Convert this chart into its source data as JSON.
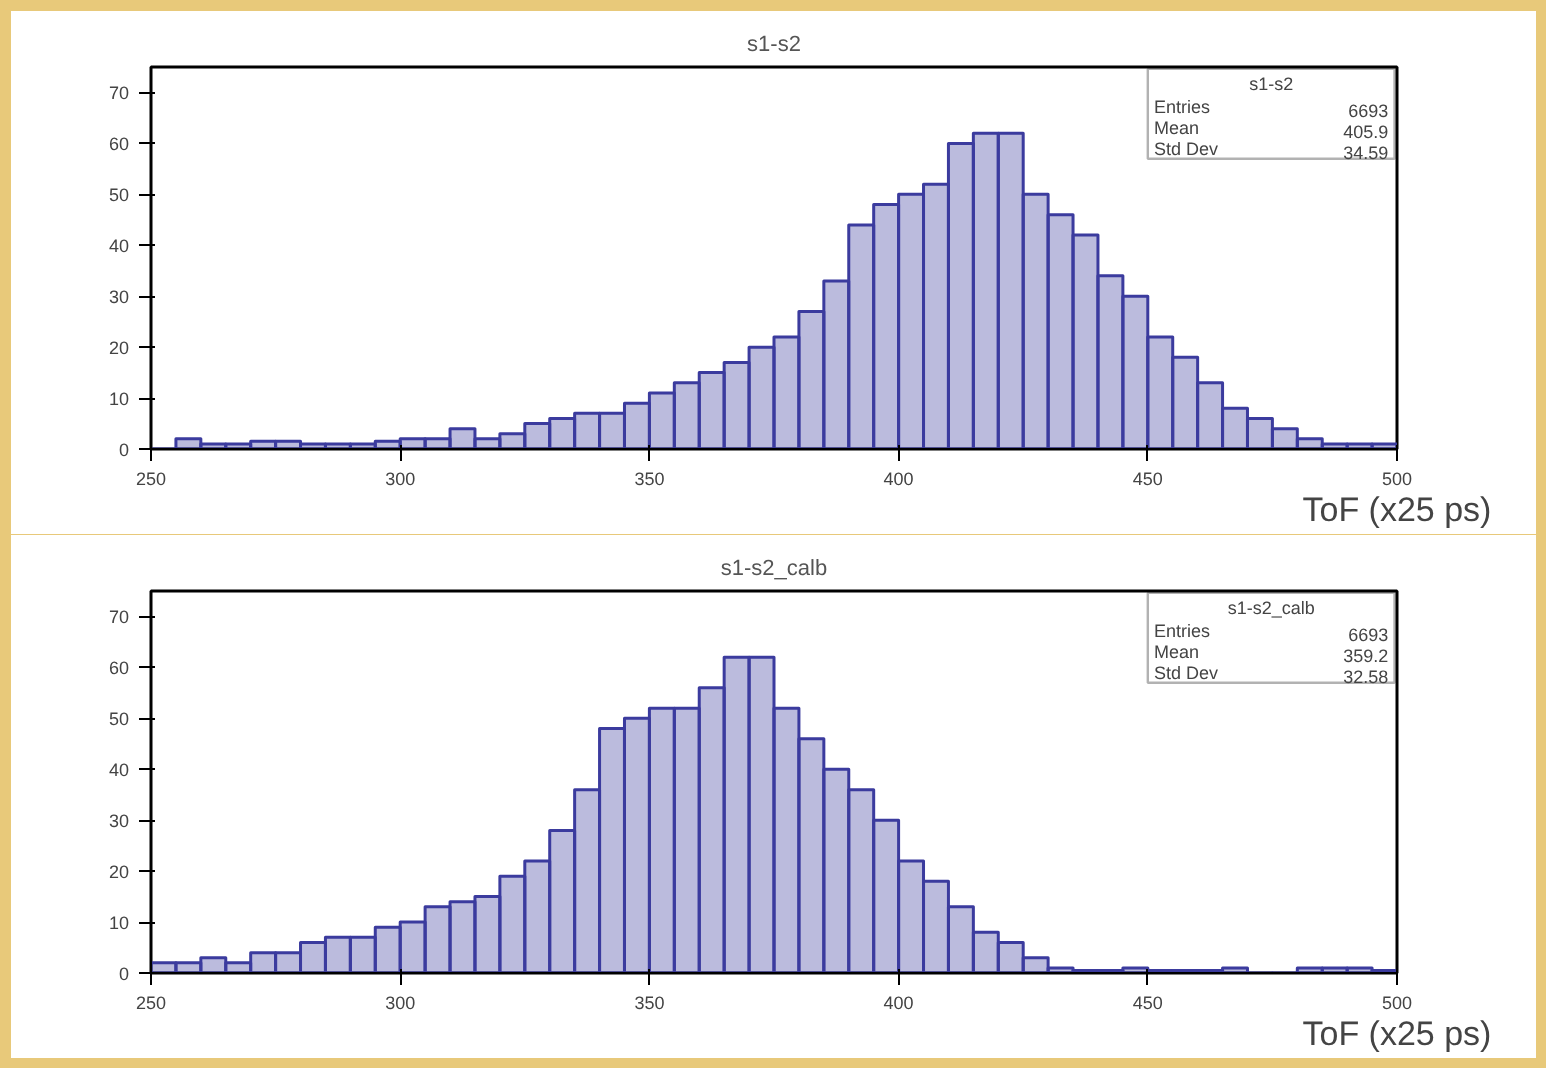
{
  "chart_data": [
    {
      "type": "histogram",
      "title": "s1-s2",
      "xlabel": "ToF (x25 ps)",
      "color": "#3b3b9e",
      "bins": [
        250,
        255,
        260,
        265,
        270,
        275,
        280,
        285,
        290,
        295,
        300,
        305,
        310,
        315,
        320,
        325,
        330,
        335,
        340,
        345,
        350,
        355,
        360,
        365,
        370,
        375,
        380,
        385,
        390,
        395,
        400,
        405,
        410,
        415,
        420,
        425,
        430,
        435,
        440,
        445,
        450,
        455,
        460,
        465,
        470,
        475,
        480,
        485,
        490,
        495,
        500
      ],
      "values": [
        0,
        2,
        1,
        1,
        1.5,
        1.5,
        1,
        1,
        1,
        1.5,
        2,
        2,
        4,
        2,
        3,
        5,
        6,
        7,
        7,
        9,
        11,
        13,
        15,
        17,
        20,
        22,
        27,
        33,
        44,
        48,
        50,
        52,
        60,
        62,
        62,
        50,
        46,
        42,
        34,
        30,
        22,
        18,
        13,
        8,
        6,
        4,
        2,
        1,
        1,
        1
      ],
      "xlim": [
        250,
        500
      ],
      "ylim": [
        0,
        75
      ],
      "xticks": [
        250,
        300,
        350,
        400,
        450,
        500
      ],
      "yticks": [
        0,
        10,
        20,
        30,
        40,
        50,
        60,
        70
      ],
      "annotations": [
        "s1-s2",
        "Entries",
        "6693",
        "Mean",
        "405.9",
        "Std Dev",
        "34.59"
      ]
    },
    {
      "type": "histogram",
      "title": "s1-s2_calb",
      "xlabel": "ToF (x25 ps)",
      "color": "#3b3b9e",
      "bins": [
        250,
        255,
        260,
        265,
        270,
        275,
        280,
        285,
        290,
        295,
        300,
        305,
        310,
        315,
        320,
        325,
        330,
        335,
        340,
        345,
        350,
        355,
        360,
        365,
        370,
        375,
        380,
        385,
        390,
        395,
        400,
        405,
        410,
        415,
        420,
        425,
        430,
        435,
        440,
        445,
        450,
        455,
        460,
        465,
        470,
        475,
        480,
        485,
        490,
        495,
        500
      ],
      "values": [
        2,
        2,
        3,
        2,
        4,
        4,
        6,
        7,
        7,
        9,
        10,
        13,
        14,
        15,
        19,
        22,
        28,
        36,
        48,
        50,
        52,
        52,
        56,
        62,
        62,
        52,
        46,
        40,
        36,
        30,
        22,
        18,
        13,
        8,
        6,
        3,
        1,
        0.5,
        0.5,
        1,
        0.5,
        0.5,
        0.5,
        1,
        0,
        0,
        1,
        1,
        1,
        0.5
      ],
      "xlim": [
        250,
        500
      ],
      "ylim": [
        0,
        75
      ],
      "xticks": [
        250,
        300,
        350,
        400,
        450,
        500
      ],
      "yticks": [
        0,
        10,
        20,
        30,
        40,
        50,
        60,
        70
      ],
      "annotations": [
        "s1-s2_calb",
        "Entries",
        "6693",
        "Mean",
        "359.2",
        "Std Dev",
        "32.58"
      ]
    }
  ]
}
